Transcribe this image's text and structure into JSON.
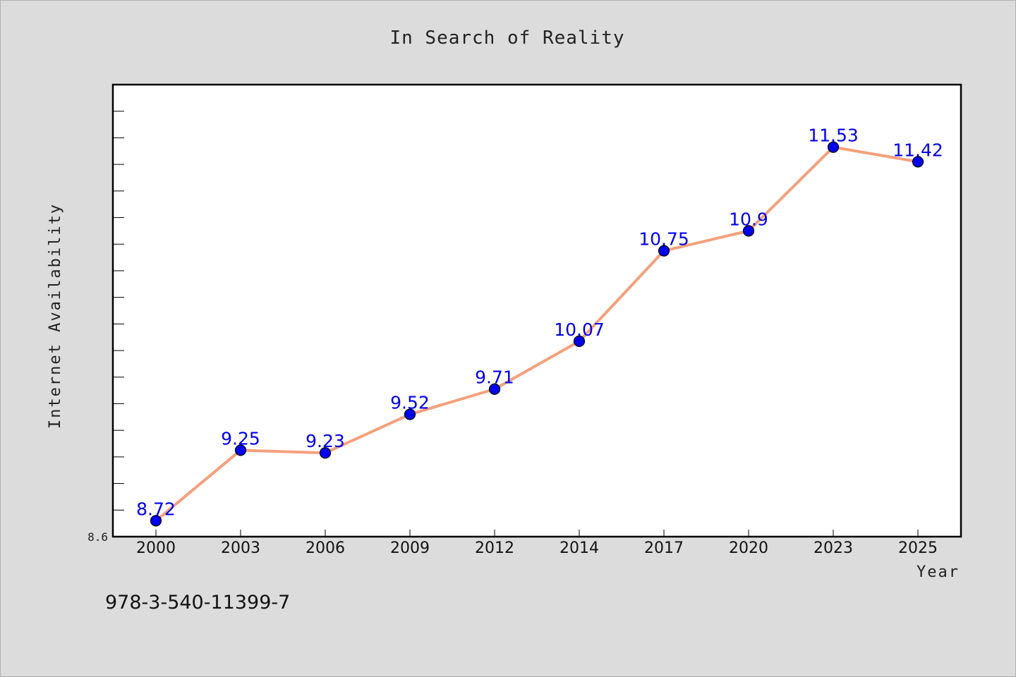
{
  "chart_data": {
    "type": "line",
    "title": "In Search of Reality",
    "xlabel": "Year",
    "ylabel": "Internet Availability",
    "categories": [
      "2000",
      "2003",
      "2006",
      "2009",
      "2012",
      "2014",
      "2017",
      "2020",
      "2023",
      "2025"
    ],
    "series": [
      {
        "values": [
          8.72,
          9.25,
          9.23,
          9.52,
          9.71,
          10.07,
          10.75,
          10.9,
          11.53,
          11.42
        ],
        "labels": [
          "8.72",
          "9.25",
          "9.23",
          "9.52",
          "9.71",
          "10.07",
          "10.75",
          "10.9",
          "11.53",
          "11.42"
        ]
      }
    ],
    "ylim": [
      8.6,
      12.0
    ],
    "y_tick_labels": [
      "8.6"
    ],
    "grid": false,
    "colors": {
      "line": "#f4a07c",
      "marker": "#0000ee",
      "data_label": "#0000ee",
      "plot_background": "#ffffff",
      "figure_background": "#dcdcdc"
    }
  },
  "footer": {
    "text": "978-3-540-11399-7"
  }
}
